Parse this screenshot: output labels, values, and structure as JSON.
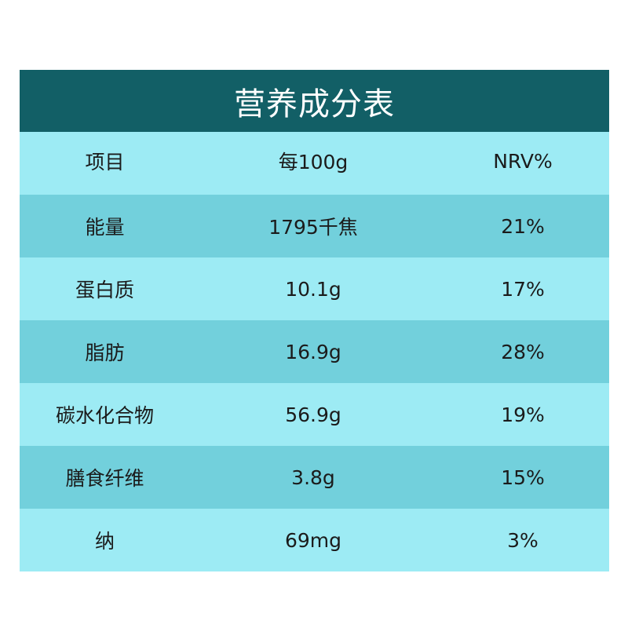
{
  "title": "营养成分表",
  "header": [
    "项目",
    "每100g",
    "NRV%"
  ],
  "rows": [
    {
      "item": "能量",
      "amount": "1795千焦",
      "nrv": "21%"
    },
    {
      "item": "蛋白质",
      "amount": "10.1g",
      "nrv": "17%"
    },
    {
      "item": "脂肪",
      "amount": "16.9g",
      "nrv": "28%"
    },
    {
      "item": "碳水化合物",
      "amount": "56.9g",
      "nrv": "19%"
    },
    {
      "item": "膳食纤维",
      "amount": "3.8g",
      "nrv": "15%"
    },
    {
      "item": "纳",
      "amount": "69mg",
      "nrv": "3%"
    }
  ],
  "colors": {
    "title_bg": "#125f66",
    "row_light": "#9debf4",
    "row_dark": "#72d0dc",
    "title_text": "#ffffff",
    "body_text": "#1b1b1b"
  }
}
